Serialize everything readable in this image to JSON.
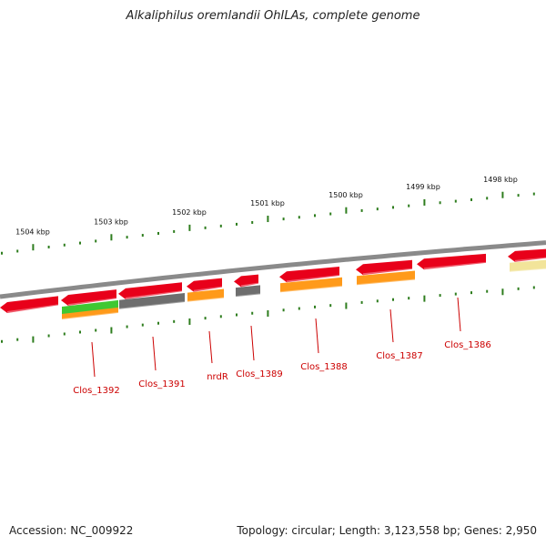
{
  "header": {
    "title": "Alkaliphilus oremlandii OhILAs, complete genome"
  },
  "footer": {
    "accession": "Accession: NC_009922",
    "summary": "Topology: circular; Length: 3,123,558 bp; Genes: 2,950"
  },
  "colors": {
    "backbone": "#8a8a8a",
    "tick": "#2e7d1e",
    "gene_red": "#e8001a",
    "gene_green": "#3fc832",
    "gene_gray": "#6e6e6e",
    "gene_orange": "#ff9a1a",
    "gene_pale": "#f2e49a",
    "label": "#cc0000",
    "kbp_label": "#111111"
  },
  "kbp_labels": [
    "1504 kbp",
    "1503 kbp",
    "1502 kbp",
    "1501 kbp",
    "1500 kbp",
    "1499 kbp",
    "1498 kbp"
  ],
  "gene_labels": [
    "Clos_1392",
    "Clos_1391",
    "nrdR",
    "Clos_1389",
    "Clos_1388",
    "Clos_1387",
    "Clos_1386"
  ]
}
